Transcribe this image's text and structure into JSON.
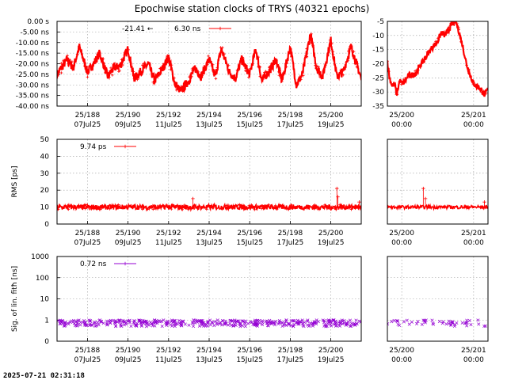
{
  "title": "Epochwise station clocks of TRYS (40321 epochs)",
  "timestamp": "2025-07-21 02:31:18",
  "colors": {
    "clock": "#ff0000",
    "rms": "#ff0000",
    "sig": "#9400d3",
    "grid": "#9a9a9a"
  },
  "chart_data": [
    {
      "id": "clock",
      "type": "line",
      "ylabel": "",
      "ylim": [
        -40,
        0
      ],
      "ytick_labels": [
        "0.00  s",
        "-5.00 ns",
        "-10.00 ns",
        "-15.00 ns",
        "-20.00 ns",
        "-25.00 ns",
        "-30.00 ns",
        "-35.00 ns",
        "-40.00 ns"
      ],
      "ytick_values": [
        0,
        -5,
        -10,
        -15,
        -20,
        -25,
        -30,
        -35,
        -40
      ],
      "xlim_days": [
        186.5,
        201.5
      ],
      "xticks": [
        {
          "top": "25/188",
          "bottom": "07Jul25",
          "day": 188
        },
        {
          "top": "25/190",
          "bottom": "09Jul25",
          "day": 190
        },
        {
          "top": "25/192",
          "bottom": "11Jul25",
          "day": 192
        },
        {
          "top": "25/194",
          "bottom": "13Jul25",
          "day": 194
        },
        {
          "top": "25/196",
          "bottom": "15Jul25",
          "day": 196
        },
        {
          "top": "25/198",
          "bottom": "17Jul25",
          "day": 198
        },
        {
          "top": "25/200",
          "bottom": "19Jul25",
          "day": 200
        }
      ],
      "legend": [
        {
          "label": "-21.41 ←",
          "style": "arrow"
        },
        {
          "label": "6.30 ns",
          "style": "line-plus"
        }
      ],
      "series": [
        {
          "name": "clock",
          "x_days": [
            186.5,
            187.0,
            187.3,
            187.6,
            188.0,
            188.3,
            188.6,
            189.0,
            189.3,
            189.6,
            190.0,
            190.3,
            190.6,
            191.0,
            191.3,
            191.6,
            192.0,
            192.3,
            192.6,
            193.0,
            193.3,
            193.6,
            194.0,
            194.3,
            194.6,
            195.0,
            195.3,
            195.6,
            196.0,
            196.3,
            196.6,
            197.0,
            197.3,
            197.6,
            198.0,
            198.3,
            198.6,
            199.0,
            199.3,
            199.6,
            200.0,
            200.3,
            200.6,
            201.0,
            201.5
          ],
          "y_ns": [
            -25,
            -18,
            -22,
            -12,
            -24,
            -20,
            -15,
            -26,
            -22,
            -21,
            -13,
            -27,
            -24,
            -20,
            -28,
            -24,
            -17,
            -29,
            -33,
            -28,
            -22,
            -26,
            -18,
            -26,
            -13,
            -24,
            -27,
            -18,
            -25,
            -13,
            -28,
            -23,
            -18,
            -28,
            -12,
            -30,
            -25,
            -6,
            -22,
            -26,
            -9,
            -26,
            -24,
            -12,
            -27
          ]
        }
      ],
      "inset": {
        "ylim": [
          -35,
          -5
        ],
        "ytick_labels": [
          "-5",
          "-10",
          "-15",
          "-20",
          "-25",
          "-30",
          "-35"
        ],
        "ytick_values": [
          -5,
          -10,
          -15,
          -20,
          -25,
          -30,
          -35
        ],
        "xlim_days": [
          199.8,
          201.2
        ],
        "xticks": [
          {
            "top": "25/200",
            "bottom": "00:00",
            "day": 200
          },
          {
            "top": "25/201",
            "bottom": "00:00",
            "day": 201
          }
        ],
        "x_days": [
          199.8,
          199.83,
          199.87,
          199.9,
          199.93,
          199.97,
          200.0,
          200.05,
          200.1,
          200.15,
          200.2,
          200.3,
          200.4,
          200.5,
          200.55,
          200.6,
          200.65,
          200.7,
          200.75,
          200.8,
          200.85,
          200.9,
          200.95,
          201.0,
          201.1,
          201.15,
          201.2
        ],
        "y_ns": [
          -19,
          -25,
          -28,
          -27,
          -31,
          -26,
          -27,
          -26,
          -24,
          -24,
          -23,
          -19,
          -15,
          -12,
          -9,
          -10,
          -8,
          -6,
          -5,
          -9,
          -14,
          -20,
          -24,
          -27,
          -29,
          -31,
          -29
        ]
      }
    },
    {
      "id": "rms",
      "type": "line",
      "ylabel": "RMS [ps]",
      "ylim": [
        0,
        50
      ],
      "ytick_labels": [
        "0",
        "10",
        "20",
        "30",
        "40",
        "50"
      ],
      "ytick_values": [
        0,
        10,
        20,
        30,
        40,
        50
      ],
      "xlim_days": [
        186.5,
        201.5
      ],
      "xticks": [
        {
          "top": "25/188",
          "bottom": "07Jul25",
          "day": 188
        },
        {
          "top": "25/190",
          "bottom": "09Jul25",
          "day": 190
        },
        {
          "top": "25/192",
          "bottom": "11Jul25",
          "day": 192
        },
        {
          "top": "25/194",
          "bottom": "13Jul25",
          "day": 194
        },
        {
          "top": "25/196",
          "bottom": "15Jul25",
          "day": 196
        },
        {
          "top": "25/198",
          "bottom": "17Jul25",
          "day": 198
        },
        {
          "top": "25/200",
          "bottom": "19Jul25",
          "day": 200
        }
      ],
      "legend": [
        {
          "label": "9.74 ps",
          "style": "line-plus"
        }
      ],
      "series": [
        {
          "name": "rms",
          "baseline": 10,
          "spread": 1.5,
          "spikes": [
            {
              "day": 193.2,
              "value": 15
            },
            {
              "day": 200.3,
              "value": 21
            },
            {
              "day": 200.35,
              "value": 16
            },
            {
              "day": 201.4,
              "value": 13
            }
          ]
        }
      ],
      "inset": {
        "ylim": [
          0,
          50
        ],
        "xlim_days": [
          199.8,
          201.2
        ],
        "xticks": [
          {
            "top": "25/200",
            "bottom": "00:00",
            "day": 200
          },
          {
            "top": "25/201",
            "bottom": "00:00",
            "day": 201
          }
        ],
        "baseline": 10,
        "spikes": [
          {
            "day": 200.3,
            "value": 21
          },
          {
            "day": 200.33,
            "value": 15
          },
          {
            "day": 201.15,
            "value": 13
          }
        ]
      }
    },
    {
      "id": "sig",
      "type": "scatter",
      "ylabel": "Sig. of lin. fitħ [ns]",
      "yscale": "log",
      "ylim": [
        0.1,
        1000
      ],
      "ytick_labels": [
        "0",
        "1",
        "10",
        "100",
        "1000"
      ],
      "ytick_values": [
        0.1,
        1,
        10,
        100,
        1000
      ],
      "xlim_days": [
        186.5,
        201.5
      ],
      "xticks": [
        {
          "top": "25/188",
          "bottom": "07Jul25",
          "day": 188
        },
        {
          "top": "25/190",
          "bottom": "09Jul25",
          "day": 190
        },
        {
          "top": "25/192",
          "bottom": "11Jul25",
          "day": 192
        },
        {
          "top": "25/194",
          "bottom": "13Jul25",
          "day": 194
        },
        {
          "top": "25/196",
          "bottom": "15Jul25",
          "day": 196
        },
        {
          "top": "25/198",
          "bottom": "17Jul25",
          "day": 198
        },
        {
          "top": "25/200",
          "bottom": "19Jul25",
          "day": 200
        }
      ],
      "legend": [
        {
          "label": "0.72 ns",
          "style": "line-plus"
        }
      ],
      "series": [
        {
          "name": "sig",
          "baseline": 0.72,
          "low": 0.5,
          "high": 1.0
        }
      ],
      "inset": {
        "yscale": "log",
        "ylim": [
          0.1,
          1000
        ],
        "xlim_days": [
          199.8,
          201.2
        ],
        "xticks": [
          {
            "top": "25/200",
            "bottom": "00:00",
            "day": 200
          },
          {
            "top": "25/201",
            "bottom": "00:00",
            "day": 201
          }
        ],
        "baseline": 0.72,
        "low": 0.5,
        "high": 1.0
      }
    }
  ]
}
